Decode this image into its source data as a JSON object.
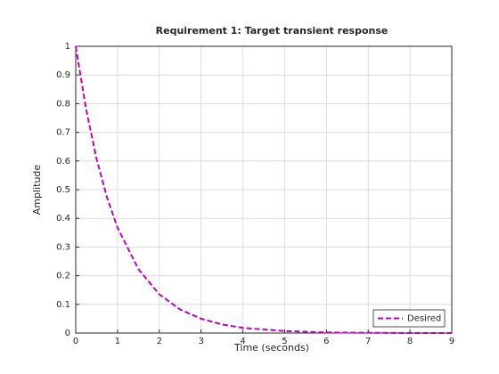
{
  "chart_data": {
    "type": "line",
    "title": "Requirement 1: Target transient response",
    "x_label": "Time (seconds)",
    "y_label": "Amplitude",
    "x": [
      0,
      0.25,
      0.5,
      0.75,
      1,
      1.5,
      2,
      2.5,
      3,
      3.5,
      4,
      5,
      6,
      7,
      8,
      9
    ],
    "series": [
      {
        "name": "Desired",
        "color": "#c000c0",
        "values": [
          1,
          0.779,
          0.607,
          0.472,
          0.368,
          0.223,
          0.135,
          0.082,
          0.05,
          0.03,
          0.018,
          0.007,
          0.002,
          0.001,
          0,
          0
        ]
      }
    ],
    "xlim": [
      0,
      9
    ],
    "xticks": [
      0,
      1,
      2,
      3,
      4,
      5,
      6,
      7,
      8,
      9
    ],
    "ylim": [
      0,
      1
    ],
    "yticks": [
      0,
      0.1,
      0.2,
      0.3,
      0.4,
      0.5,
      0.6,
      0.7,
      0.8,
      0.9,
      1
    ],
    "grid": true,
    "legend": "southeast"
  }
}
